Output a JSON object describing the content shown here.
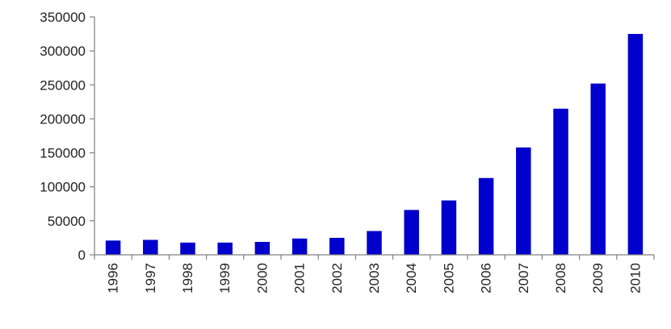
{
  "chart_data": {
    "type": "bar",
    "title": "",
    "xlabel": "",
    "ylabel": "",
    "categories": [
      "1996",
      "1997",
      "1998",
      "1999",
      "2000",
      "2001",
      "2002",
      "2003",
      "2004",
      "2005",
      "2006",
      "2007",
      "2008",
      "2009",
      "2010"
    ],
    "series": [
      {
        "values": [
          21000,
          22000,
          18000,
          18000,
          19000,
          24000,
          25000,
          35000,
          66000,
          80000,
          113000,
          158000,
          215000,
          252000,
          325000
        ],
        "color": "#0000CC"
      }
    ],
    "ylim": [
      0,
      350000
    ],
    "yticks": [
      "0",
      "50000",
      "100000",
      "150000",
      "200000",
      "250000",
      "300000",
      "350000"
    ],
    "ytick_values": [
      0,
      50000,
      100000,
      150000,
      200000,
      250000,
      300000,
      350000
    ],
    "grid": false,
    "legend": "none",
    "x_tick_rotation": "vertical",
    "axis_color": "#808080"
  }
}
